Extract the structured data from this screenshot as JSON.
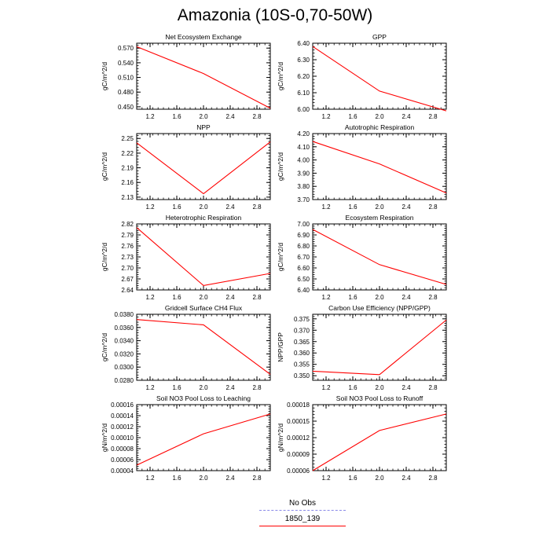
{
  "title": "Amazonia (10S-0,70-50W)",
  "legend": [
    {
      "label": "No Obs",
      "color": "#8a8ae8",
      "style": "dashed"
    },
    {
      "label": "1850_139",
      "color": "#ff0000",
      "style": "solid"
    }
  ],
  "chart_data": [
    {
      "type": "line",
      "title": "Net Ecosystem Exchange",
      "ylabel": "gC/m^2/d",
      "xlim": [
        1,
        3
      ],
      "xticks": [
        "1.2",
        "1.6",
        "2.0",
        "2.4",
        "2.8"
      ],
      "ylim": [
        0.445,
        0.58
      ],
      "yticks": [
        "0.450",
        "0.480",
        "0.510",
        "0.540",
        "0.570"
      ],
      "series": [
        {
          "x": [
            1,
            2,
            3
          ],
          "y": [
            0.573,
            0.518,
            0.447
          ]
        }
      ]
    },
    {
      "type": "line",
      "title": "GPP",
      "ylabel": "gC/m^2/d",
      "xlim": [
        1,
        3
      ],
      "xticks": [
        "1.2",
        "1.6",
        "2.0",
        "2.4",
        "2.8"
      ],
      "ylim": [
        6.0,
        6.4
      ],
      "yticks": [
        "6.00",
        "6.10",
        "6.20",
        "6.30",
        "6.40"
      ],
      "series": [
        {
          "x": [
            1,
            2,
            3
          ],
          "y": [
            6.38,
            6.11,
            5.99
          ]
        }
      ]
    },
    {
      "type": "line",
      "title": "NPP",
      "ylabel": "gC/m^2/d",
      "xlim": [
        1,
        3
      ],
      "xticks": [
        "1.2",
        "1.6",
        "2.0",
        "2.4",
        "2.8"
      ],
      "ylim": [
        2.125,
        2.26
      ],
      "yticks": [
        "2.13",
        "2.16",
        "2.19",
        "2.22",
        "2.25"
      ],
      "series": [
        {
          "x": [
            1,
            2,
            3
          ],
          "y": [
            2.241,
            2.137,
            2.243
          ]
        }
      ]
    },
    {
      "type": "line",
      "title": "Autotrophic Respiration",
      "ylabel": "gC/m^2/d",
      "xlim": [
        1,
        3
      ],
      "xticks": [
        "1.2",
        "1.6",
        "2.0",
        "2.4",
        "2.8"
      ],
      "ylim": [
        3.7,
        4.2
      ],
      "yticks": [
        "3.70",
        "3.80",
        "3.90",
        "4.00",
        "4.10",
        "4.20"
      ],
      "series": [
        {
          "x": [
            1,
            2,
            3
          ],
          "y": [
            4.14,
            3.97,
            3.75
          ]
        }
      ]
    },
    {
      "type": "line",
      "title": "Heterotrophic Respiration",
      "ylabel": "gC/m^2/d",
      "xlim": [
        1,
        3
      ],
      "xticks": [
        "1.2",
        "1.6",
        "2.0",
        "2.4",
        "2.8"
      ],
      "ylim": [
        2.64,
        2.82
      ],
      "yticks": [
        "2.64",
        "2.67",
        "2.70",
        "2.73",
        "2.76",
        "2.79",
        "2.82"
      ],
      "series": [
        {
          "x": [
            1,
            2,
            3
          ],
          "y": [
            2.81,
            2.652,
            2.685
          ]
        }
      ]
    },
    {
      "type": "line",
      "title": "Ecosystem Respiration",
      "ylabel": "gC/m^2/d",
      "xlim": [
        1,
        3
      ],
      "xticks": [
        "1.2",
        "1.6",
        "2.0",
        "2.4",
        "2.8"
      ],
      "ylim": [
        6.4,
        7.0
      ],
      "yticks": [
        "6.40",
        "6.50",
        "6.60",
        "6.70",
        "6.80",
        "6.90",
        "7.00"
      ],
      "series": [
        {
          "x": [
            1,
            2,
            3
          ],
          "y": [
            6.95,
            6.63,
            6.45
          ]
        }
      ]
    },
    {
      "type": "line",
      "title": "Gridcell Surface CH4 Flux",
      "ylabel": "gC/m^2/d",
      "xlim": [
        1,
        3
      ],
      "xticks": [
        "1.2",
        "1.6",
        "2.0",
        "2.4",
        "2.8"
      ],
      "ylim": [
        0.028,
        0.038
      ],
      "yticks": [
        "0.0280",
        "0.0300",
        "0.0320",
        "0.0340",
        "0.0360",
        "0.0380"
      ],
      "series": [
        {
          "x": [
            1,
            2,
            3
          ],
          "y": [
            0.0372,
            0.0364,
            0.0289
          ]
        }
      ]
    },
    {
      "type": "line",
      "title": "Carbon Use Efficiency (NPP/GPP)",
      "ylabel": "NPP/GPP",
      "xlim": [
        1,
        3
      ],
      "xticks": [
        "1.2",
        "1.6",
        "2.0",
        "2.4",
        "2.8"
      ],
      "ylim": [
        0.348,
        0.377
      ],
      "yticks": [
        "0.350",
        "0.355",
        "0.360",
        "0.365",
        "0.370",
        "0.375"
      ],
      "series": [
        {
          "x": [
            1,
            2,
            3
          ],
          "y": [
            0.352,
            0.3505,
            0.3745
          ]
        }
      ]
    },
    {
      "type": "line",
      "title": "Soil NO3 Pool Loss to Leaching",
      "ylabel": "gN/m^2/d",
      "xlim": [
        1,
        3
      ],
      "xticks": [
        "1.2",
        "1.6",
        "2.0",
        "2.4",
        "2.8"
      ],
      "ylim": [
        4e-05,
        0.00016
      ],
      "yticks": [
        "0.00004",
        "0.00006",
        "0.00008",
        "0.00010",
        "0.00012",
        "0.00014",
        "0.00016"
      ],
      "series": [
        {
          "x": [
            1,
            2,
            3
          ],
          "y": [
            5e-05,
            0.000107,
            0.000143
          ]
        }
      ]
    },
    {
      "type": "line",
      "title": "Soil NO3 Pool Loss to Runoff",
      "ylabel": "gN/m^2/d",
      "xlim": [
        1,
        3
      ],
      "xticks": [
        "1.2",
        "1.6",
        "2.0",
        "2.4",
        "2.8"
      ],
      "ylim": [
        6e-05,
        0.00018
      ],
      "yticks": [
        "0.00006",
        "0.00009",
        "0.00012",
        "0.00015",
        "0.00018"
      ],
      "series": [
        {
          "x": [
            1,
            2,
            3
          ],
          "y": [
            6e-05,
            0.000133,
            0.000163
          ]
        }
      ]
    }
  ]
}
